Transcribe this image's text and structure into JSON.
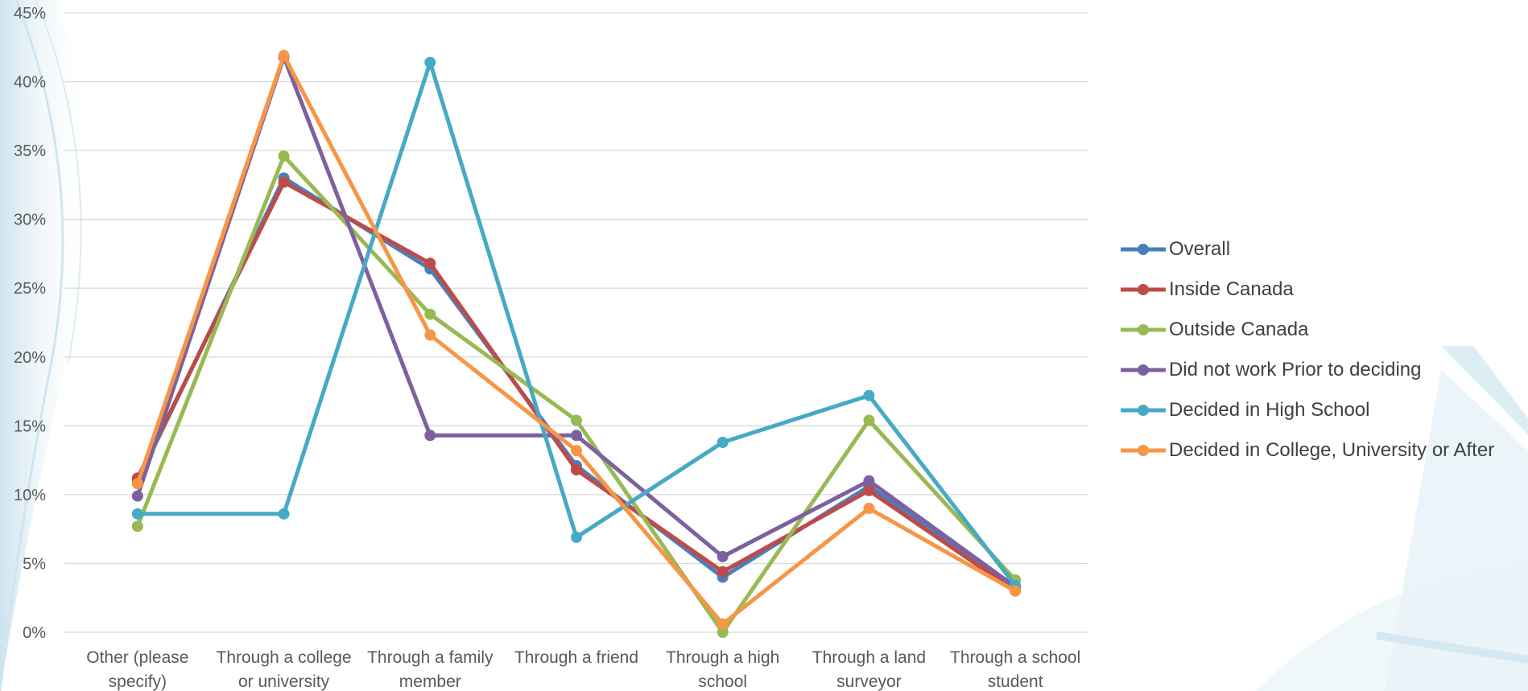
{
  "colors": {
    "Overall": "#4a7ebb",
    "Inside Canada": "#be4b48",
    "Outside Canada": "#98b954",
    "Did not work Prior to deciding": "#7d60a0",
    "Decided in High School": "#46aac5",
    "Decided in College, University or After": "#f79646",
    "grid": "#d9d9d9",
    "text": "#595959"
  },
  "chart_data": {
    "type": "line",
    "title": "",
    "xlabel": "",
    "ylabel": "",
    "ylim": [
      0,
      45
    ],
    "y_ticks": [
      "0%",
      "5%",
      "10%",
      "15%",
      "20%",
      "25%",
      "30%",
      "35%",
      "40%",
      "45%"
    ],
    "y_tick_values": [
      0,
      5,
      10,
      15,
      20,
      25,
      30,
      35,
      40,
      45
    ],
    "grid": true,
    "legend_position": "right",
    "categories": [
      [
        "Other (please",
        "specify)"
      ],
      [
        "Through a college",
        "or university"
      ],
      [
        "Through a family",
        "member"
      ],
      [
        "Through a friend"
      ],
      [
        "Through a high",
        "school"
      ],
      [
        "Through a land",
        "surveyor"
      ],
      [
        "Through a school",
        "student"
      ]
    ],
    "series": [
      {
        "name": "Overall",
        "values": [
          11.0,
          33.0,
          26.4,
          12.1,
          4.0,
          10.6,
          3.3
        ]
      },
      {
        "name": "Inside Canada",
        "values": [
          11.2,
          32.7,
          26.8,
          11.8,
          4.4,
          10.3,
          3.0
        ]
      },
      {
        "name": "Outside Canada",
        "values": [
          7.7,
          34.6,
          23.1,
          15.4,
          0.0,
          15.4,
          3.8
        ]
      },
      {
        "name": "Did not work Prior to deciding",
        "values": [
          9.9,
          41.8,
          14.3,
          14.3,
          5.5,
          11.0,
          3.3
        ]
      },
      {
        "name": "Decided in High School",
        "values": [
          8.6,
          8.6,
          41.4,
          6.9,
          13.8,
          17.2,
          3.4
        ]
      },
      {
        "name": "Decided in College, University or After",
        "values": [
          10.8,
          41.9,
          21.6,
          13.2,
          0.6,
          9.0,
          3.0
        ]
      }
    ]
  }
}
